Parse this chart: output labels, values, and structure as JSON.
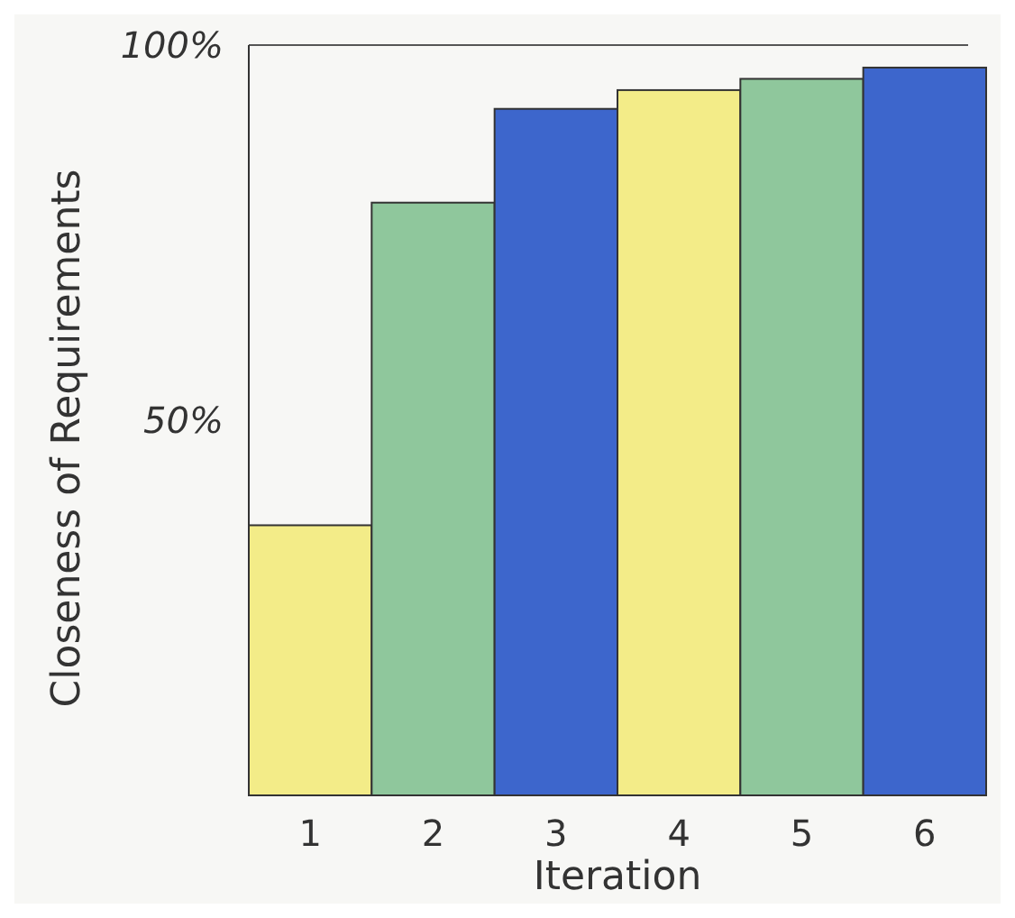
{
  "chart_data": {
    "type": "bar",
    "xlabel": "Iteration",
    "ylabel": "Closeness of Requirements",
    "categories": [
      "1",
      "2",
      "3",
      "4",
      "5",
      "6"
    ],
    "values": [
      36,
      79,
      91.5,
      94,
      95.5,
      97
    ],
    "colors": [
      "#f3ec88",
      "#8fc79c",
      "#3d66cc",
      "#f3ec88",
      "#8fc79c",
      "#3d66cc"
    ],
    "ylim": [
      0,
      100
    ],
    "yticks": [
      {
        "value": 50,
        "label": "50%"
      },
      {
        "value": 100,
        "label": "100%"
      }
    ],
    "ref_lines": [
      {
        "axis": "y",
        "value": 100,
        "label": null,
        "color": "#555555"
      }
    ]
  }
}
